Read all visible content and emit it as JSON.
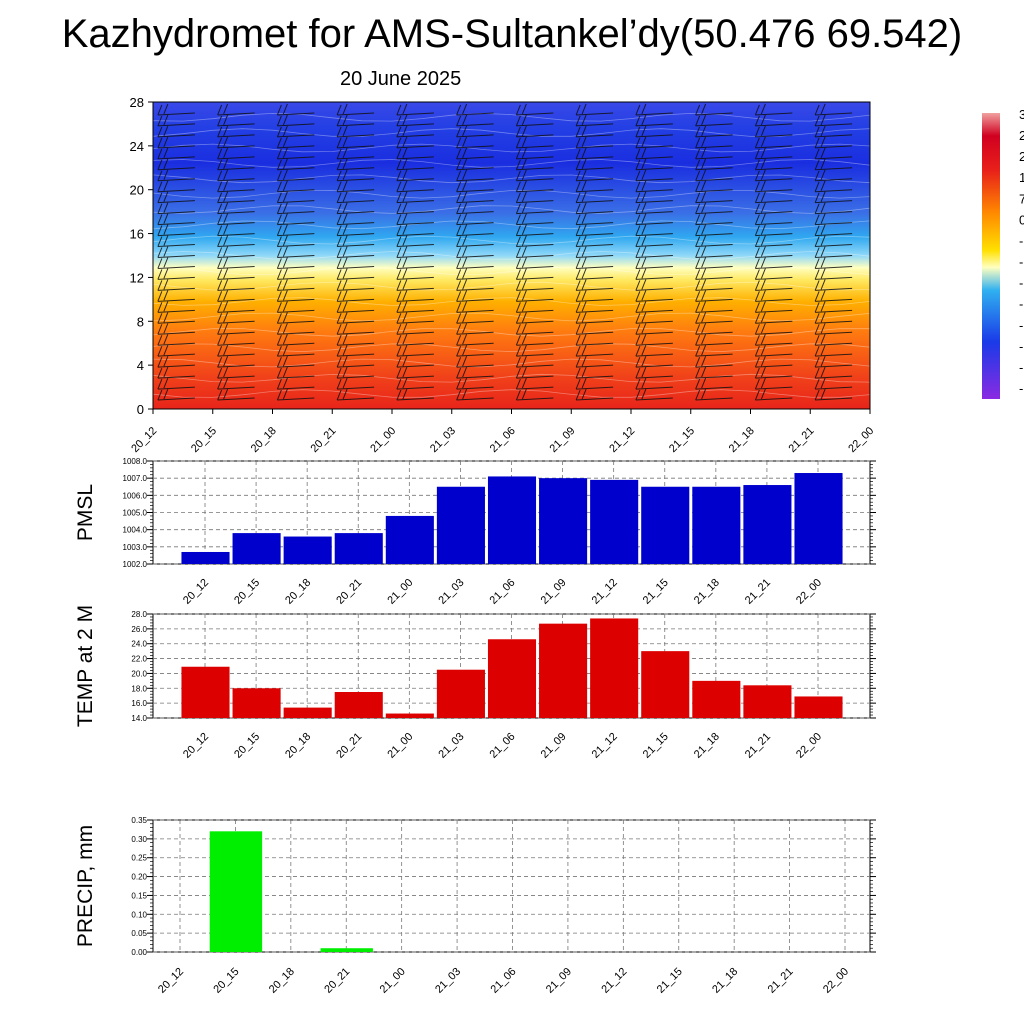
{
  "title": "Kazhydromet for AMS-Sultankel’dy(50.476 69.542)",
  "subtitle": "20 June 2025",
  "chart_data": [
    {
      "type": "heatmap",
      "name": "cross-section",
      "ylim": [
        0,
        28
      ],
      "yticks": [
        "0",
        "4",
        "8",
        "12",
        "16",
        "20",
        "24",
        "28"
      ],
      "categories": [
        "20_12",
        "20_15",
        "20_18",
        "20_21",
        "21_00",
        "21_03",
        "21_06",
        "21_09",
        "21_12",
        "21_15",
        "21_18",
        "21_21",
        "22_00"
      ],
      "colorbar_labels": [
        "3",
        "2",
        "2",
        "1",
        "7",
        "0",
        "-",
        "-",
        "-",
        "-",
        "-",
        "-",
        "-",
        "-"
      ],
      "colors": [
        "#e61e1e",
        "#ff6a00",
        "#ffd000",
        "#ffffaa",
        "#4fc3f7",
        "#2a5ce8",
        "#1010e0",
        "#7a2be0"
      ]
    },
    {
      "type": "line",
      "name": "PMSL",
      "ylabel": "PMSL",
      "ylim": [
        1002.0,
        1008.0
      ],
      "yticks": [
        "1002.0",
        "1003.0",
        "1004.0",
        "1005.0",
        "1006.0",
        "1007.0",
        "1008.0"
      ],
      "categories": [
        "20_12",
        "20_15",
        "20_18",
        "20_21",
        "21_00",
        "21_03",
        "21_06",
        "21_09",
        "21_12",
        "21_15",
        "21_18",
        "21_21",
        "22_00"
      ],
      "values": [
        1002.7,
        1003.8,
        1003.6,
        1003.8,
        1004.8,
        1006.5,
        1007.1,
        1007.0,
        1006.9,
        1006.5,
        1006.5,
        1006.6,
        1007.3
      ],
      "color": "#0000cc"
    },
    {
      "type": "line",
      "name": "TEMP",
      "ylabel": "TEMP at 2 M",
      "ylim": [
        14.0,
        28.0
      ],
      "yticks": [
        "14.0",
        "16.0",
        "18.0",
        "20.0",
        "22.0",
        "24.0",
        "26.0",
        "28.0"
      ],
      "categories": [
        "20_12",
        "20_15",
        "20_18",
        "20_21",
        "21_00",
        "21_03",
        "21_06",
        "21_09",
        "21_12",
        "21_15",
        "21_18",
        "21_21",
        "22_00"
      ],
      "values": [
        20.9,
        18.0,
        15.4,
        17.5,
        14.6,
        20.5,
        24.6,
        26.7,
        27.4,
        23.0,
        19.0,
        18.4,
        16.9
      ],
      "color": "#dd0000"
    },
    {
      "type": "bar",
      "name": "PRECIP",
      "ylabel": "PRECIP, mm",
      "ylim": [
        0,
        0.35
      ],
      "yticks": [
        "0.00",
        "0.05",
        "0.10",
        "0.15",
        "0.20",
        "0.25",
        "0.30",
        "0.35"
      ],
      "categories": [
        "20_12",
        "20_15",
        "20_18",
        "20_21",
        "21_00",
        "21_03",
        "21_06",
        "21_09",
        "21_12",
        "21_15",
        "21_18",
        "21_21",
        "22_00"
      ],
      "values": [
        0,
        0.32,
        0,
        0.01,
        0,
        0,
        0,
        0,
        0,
        0,
        0,
        0,
        0
      ],
      "color": "#00ee00"
    }
  ]
}
